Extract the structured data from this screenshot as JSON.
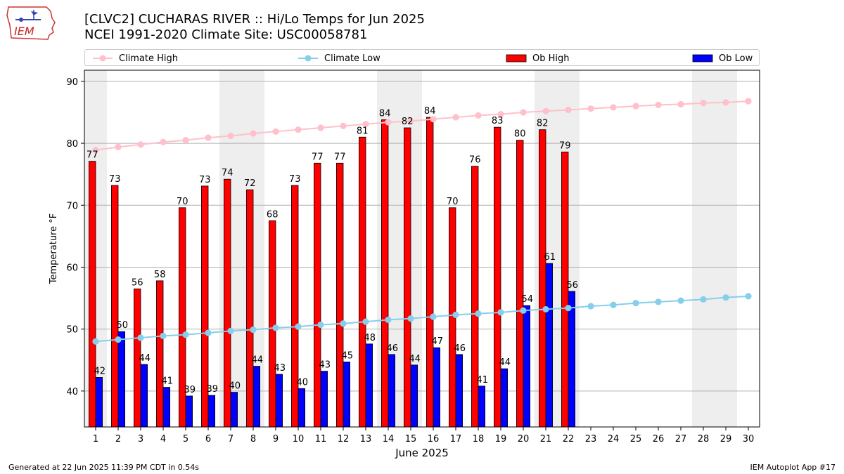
{
  "header": {
    "title_line1": "[CLVC2] CUCHARAS RIVER :: Hi/Lo Temps for Jun 2025",
    "title_line2": "NCEI 1991-2020 Climate Site: USC00058781",
    "logo_text": "IEM"
  },
  "legend": {
    "climate_high": "Climate High",
    "climate_low": "Climate Low",
    "ob_high": "Ob High",
    "ob_low": "Ob Low"
  },
  "footer": {
    "generated": "Generated at 22 Jun 2025 11:39 PM CDT in 0.54s",
    "app": "IEM Autoplot App #17"
  },
  "colors": {
    "ob_high": "#ff0000",
    "ob_low": "#0000ff",
    "climate_high": "#ffc0cb",
    "climate_low": "#87ceeb",
    "weekend_band": "#eeeeee",
    "grid": "#b0b0b0"
  },
  "chart_data": {
    "type": "bar",
    "xlabel": "June 2025",
    "ylabel": "Temperature °F",
    "ylim": [
      34.2,
      91.8
    ],
    "yticks": [
      40,
      50,
      60,
      70,
      80,
      90
    ],
    "grid": "horizontal",
    "legend_position": "top",
    "days": [
      1,
      2,
      3,
      4,
      5,
      6,
      7,
      8,
      9,
      10,
      11,
      12,
      13,
      14,
      15,
      16,
      17,
      18,
      19,
      20,
      21,
      22,
      23,
      24,
      25,
      26,
      27,
      28,
      29,
      30
    ],
    "weekend_bands": [
      [
        1,
        1
      ],
      [
        7,
        8
      ],
      [
        14,
        15
      ],
      [
        21,
        22
      ],
      [
        28,
        29
      ]
    ],
    "ob_high": [
      77,
      73,
      56,
      58,
      70,
      73,
      74,
      72,
      68,
      73,
      77,
      77,
      81,
      84,
      82,
      84,
      70,
      76,
      83,
      80,
      82,
      79
    ],
    "ob_low": [
      42,
      50,
      44,
      41,
      39,
      39,
      40,
      44,
      43,
      40,
      43,
      45,
      48,
      46,
      44,
      47,
      46,
      41,
      44,
      54,
      61,
      56
    ],
    "ob_high_precise": [
      77.1,
      73.2,
      56.5,
      57.8,
      69.6,
      73.1,
      74.2,
      72.5,
      67.5,
      73.2,
      76.8,
      76.8,
      81.0,
      83.8,
      82.5,
      84.2,
      69.6,
      76.3,
      82.6,
      80.5,
      82.2,
      78.6
    ],
    "ob_low_precise": [
      42.2,
      49.6,
      44.3,
      40.6,
      39.2,
      39.3,
      39.8,
      44.0,
      42.7,
      40.4,
      43.2,
      44.7,
      47.6,
      45.9,
      44.2,
      47.0,
      45.9,
      40.8,
      43.6,
      53.8,
      60.6,
      56.1
    ],
    "climate_high": [
      78.9,
      79.4,
      79.8,
      80.2,
      80.5,
      80.9,
      81.2,
      81.6,
      81.9,
      82.2,
      82.5,
      82.8,
      83.1,
      83.4,
      83.6,
      83.9,
      84.2,
      84.5,
      84.7,
      85.0,
      85.2,
      85.4,
      85.6,
      85.8,
      86.0,
      86.2,
      86.3,
      86.5,
      86.6,
      86.8
    ],
    "climate_low": [
      48.0,
      48.3,
      48.6,
      48.9,
      49.1,
      49.4,
      49.7,
      49.9,
      50.2,
      50.4,
      50.7,
      50.9,
      51.2,
      51.5,
      51.7,
      52.0,
      52.3,
      52.5,
      52.7,
      53.0,
      53.2,
      53.4,
      53.7,
      53.9,
      54.2,
      54.4,
      54.6,
      54.8,
      55.1,
      55.3
    ]
  }
}
